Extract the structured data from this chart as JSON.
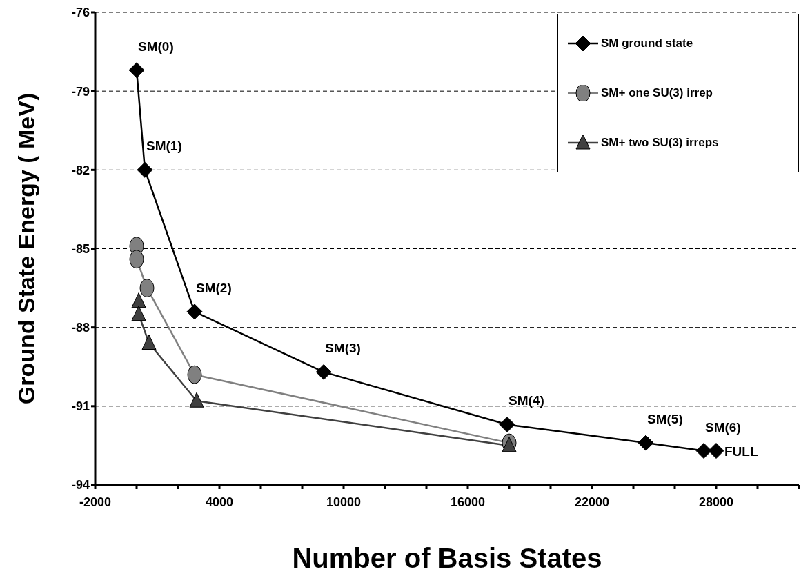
{
  "chart_data": {
    "type": "line",
    "xlabel": "Number of Basis States",
    "ylabel": "Ground  State Energy ( MeV)",
    "xlim": [
      -2000,
      32000
    ],
    "xticks": [
      -2000,
      {
        "value": 0,
        "label": null
      },
      {
        "value": 2000,
        "label": null
      },
      4000,
      {
        "value": 6000,
        "label": null
      },
      {
        "value": 8000,
        "label": null
      },
      10000,
      {
        "value": 12000,
        "label": null
      },
      {
        "value": 14000,
        "label": null
      },
      16000,
      {
        "value": 18000,
        "label": null
      },
      {
        "value": 20000,
        "label": null
      },
      22000,
      {
        "value": 24000,
        "label": null
      },
      {
        "value": 26000,
        "label": null
      },
      28000,
      {
        "value": 30000,
        "label": null
      },
      {
        "value": 32000,
        "label": null
      }
    ],
    "ylim": [
      -94,
      -76
    ],
    "yticks": [
      -94,
      -91,
      -88,
      -85,
      -82,
      -79,
      -76
    ],
    "grid": "y",
    "legend": "top right",
    "line_style": "solid",
    "series": [
      {
        "name": "SM ground state",
        "color": "#000000",
        "marker": "diamond",
        "x": [
          0,
          400,
          2800,
          9040,
          17900,
          24600,
          27400,
          28000
        ],
        "values": [
          -78.2,
          -82.0,
          -87.4,
          -89.7,
          -91.7,
          -92.4,
          -92.7,
          -92.7
        ]
      },
      {
        "name": "SM+ one SU(3) irrep",
        "color": "#808080",
        "marker": "circle",
        "x": [
          0,
          0,
          500,
          2800,
          18000
        ],
        "values": [
          -84.9,
          -85.4,
          -86.5,
          -89.8,
          -92.4
        ]
      },
      {
        "name": "SM+ two SU(3) irreps",
        "color": "#404040",
        "marker": "triangle",
        "x": [
          100,
          100,
          600,
          2900,
          18000
        ],
        "values": [
          -87.0,
          -87.5,
          -88.6,
          -90.8,
          -92.5
        ]
      }
    ],
    "annotations": [
      {
        "text": "SM(0)",
        "x": 0,
        "y": -78.2
      },
      {
        "text": "SM(1)",
        "x": 400,
        "y": -82.0
      },
      {
        "text": "SM(2)",
        "x": 2800,
        "y": -87.4
      },
      {
        "text": "SM(3)",
        "x": 9040,
        "y": -89.7
      },
      {
        "text": "SM(4)",
        "x": 17900,
        "y": -91.7
      },
      {
        "text": "SM(5)",
        "x": 24600,
        "y": -92.4
      },
      {
        "text": "SM(6)",
        "x": 27400,
        "y": -92.7
      },
      {
        "text": "FULL",
        "x": 28000,
        "y": -92.7
      }
    ]
  }
}
